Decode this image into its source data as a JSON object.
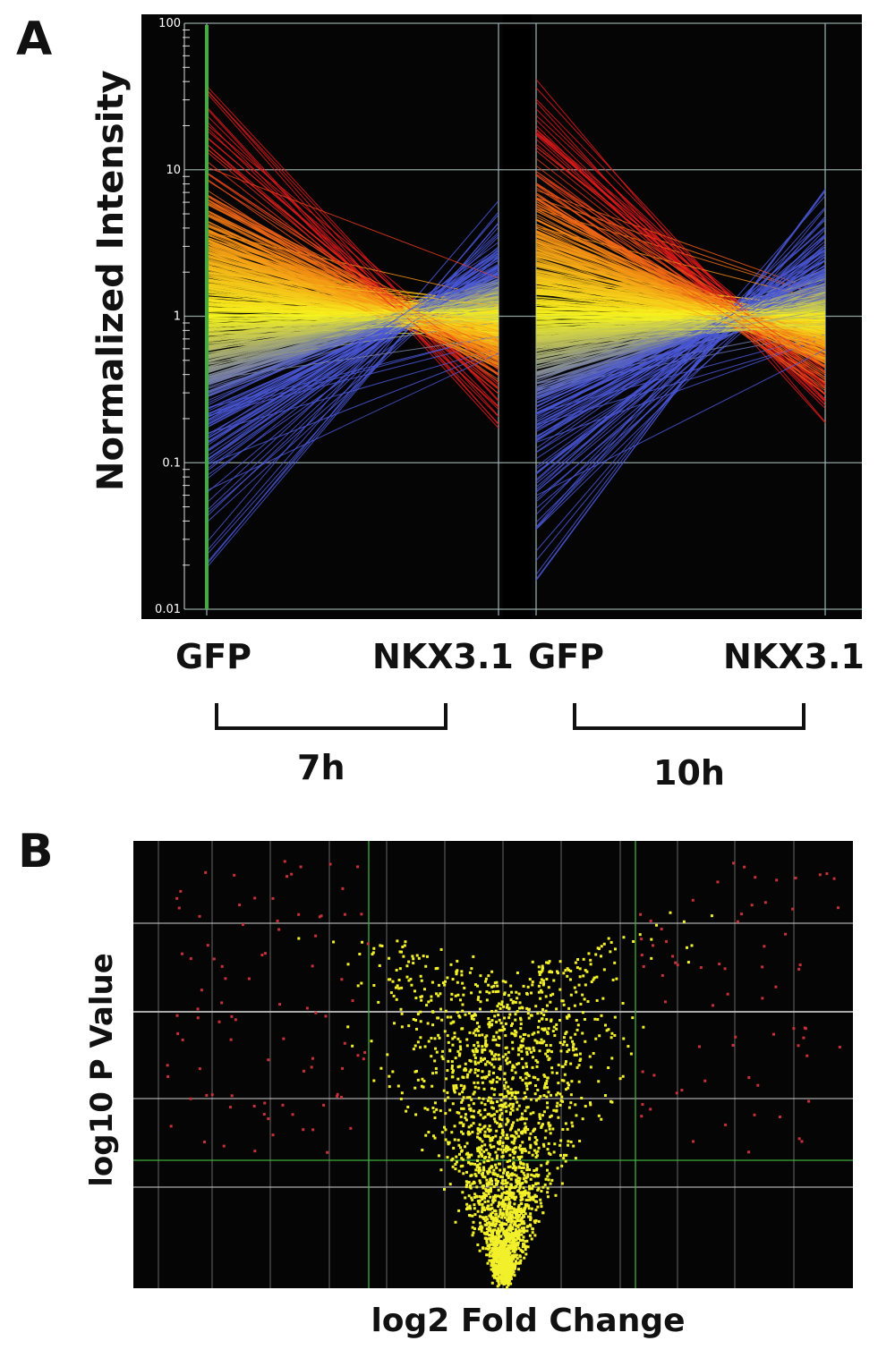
{
  "panel_a": {
    "letter": "A",
    "ylabel": "Normalized Intensity",
    "yticks": [
      "100",
      "10",
      "1",
      "0.1",
      "0.01"
    ],
    "conditions": [
      {
        "start": "GFP",
        "end": "NKX3.1",
        "time": "7h"
      },
      {
        "start": "GFP",
        "end": "NKX3.1",
        "time": "10h"
      }
    ]
  },
  "panel_b": {
    "letter": "B",
    "ylabel": "log10 P Value",
    "xlabel": "log2 Fold Change"
  },
  "colors": {
    "plot_bg": "#050505",
    "grid": "#9fb6b0",
    "threshold": "#3fae3f",
    "up": "#e31a1c",
    "mid": "#f7f51e",
    "down": "#4a57d6",
    "volcano_point": "#f2f02a",
    "volcano_sig": "#c8303a"
  },
  "chart_data": [
    {
      "type": "line",
      "title": "",
      "xlabel": "",
      "ylabel": "Normalized Intensity",
      "yscale": "log",
      "ylim": [
        0.01,
        100
      ],
      "categories": [
        "GFP",
        "NKX3.1"
      ],
      "groups": [
        "7h",
        "10h"
      ],
      "grid": true
    },
    {
      "type": "scatter",
      "title": "",
      "xlabel": "log2 Fold Change",
      "ylabel": "log10 P Value",
      "grid": true
    }
  ]
}
